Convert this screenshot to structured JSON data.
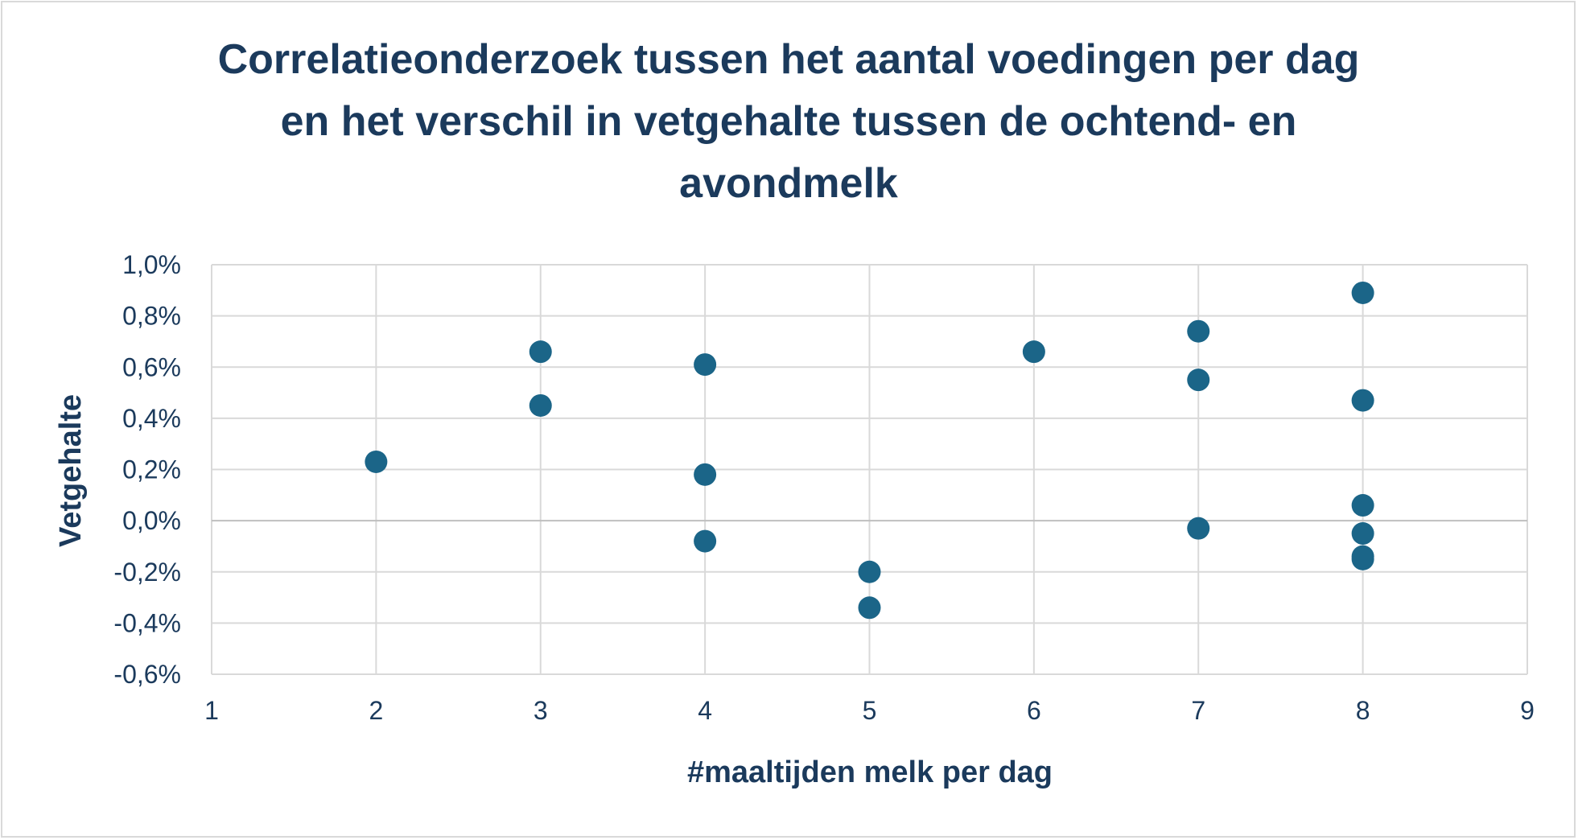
{
  "chart_data": {
    "type": "scatter",
    "title": "Correlatieonderzoek tussen het aantal voedingen per dag en het verschil in vetgehalte tussen de ochtend- en avondmelk",
    "xlabel": "#maaltijden melk per dag",
    "ylabel": "Vetgehalte",
    "xlim": [
      1,
      9
    ],
    "ylim": [
      -0.6,
      1.0
    ],
    "x_ticks": [
      1,
      2,
      3,
      4,
      5,
      6,
      7,
      8,
      9
    ],
    "x_tick_labels": [
      "1",
      "2",
      "3",
      "4",
      "5",
      "6",
      "7",
      "8",
      "9"
    ],
    "y_ticks": [
      -0.6,
      -0.4,
      -0.2,
      0.0,
      0.2,
      0.4,
      0.6,
      0.8,
      1.0
    ],
    "y_tick_labels": [
      "-0,6%",
      "-0,4%",
      "-0,2%",
      "0,0%",
      "0,2%",
      "0,4%",
      "0,6%",
      "0,8%",
      "1,0%"
    ],
    "grid": true,
    "legend": "none",
    "marker_color": "#1b6588",
    "series": [
      {
        "points": [
          {
            "x": 2,
            "y": 0.23
          },
          {
            "x": 3,
            "y": 0.66
          },
          {
            "x": 3,
            "y": 0.45
          },
          {
            "x": 4,
            "y": 0.61
          },
          {
            "x": 4,
            "y": 0.18
          },
          {
            "x": 4,
            "y": -0.08
          },
          {
            "x": 5,
            "y": -0.2
          },
          {
            "x": 5,
            "y": -0.34
          },
          {
            "x": 6,
            "y": 0.66
          },
          {
            "x": 7,
            "y": 0.74
          },
          {
            "x": 7,
            "y": 0.55
          },
          {
            "x": 7,
            "y": -0.03
          },
          {
            "x": 8,
            "y": 0.89
          },
          {
            "x": 8,
            "y": 0.47
          },
          {
            "x": 8,
            "y": 0.06
          },
          {
            "x": 8,
            "y": -0.05
          },
          {
            "x": 8,
            "y": -0.14
          },
          {
            "x": 8,
            "y": -0.15
          }
        ]
      }
    ]
  },
  "colors": {
    "text": "#1b3a5c",
    "grid": "#d9d9d9",
    "zero_line": "#bfbfbf",
    "marker": "#1b6588"
  }
}
